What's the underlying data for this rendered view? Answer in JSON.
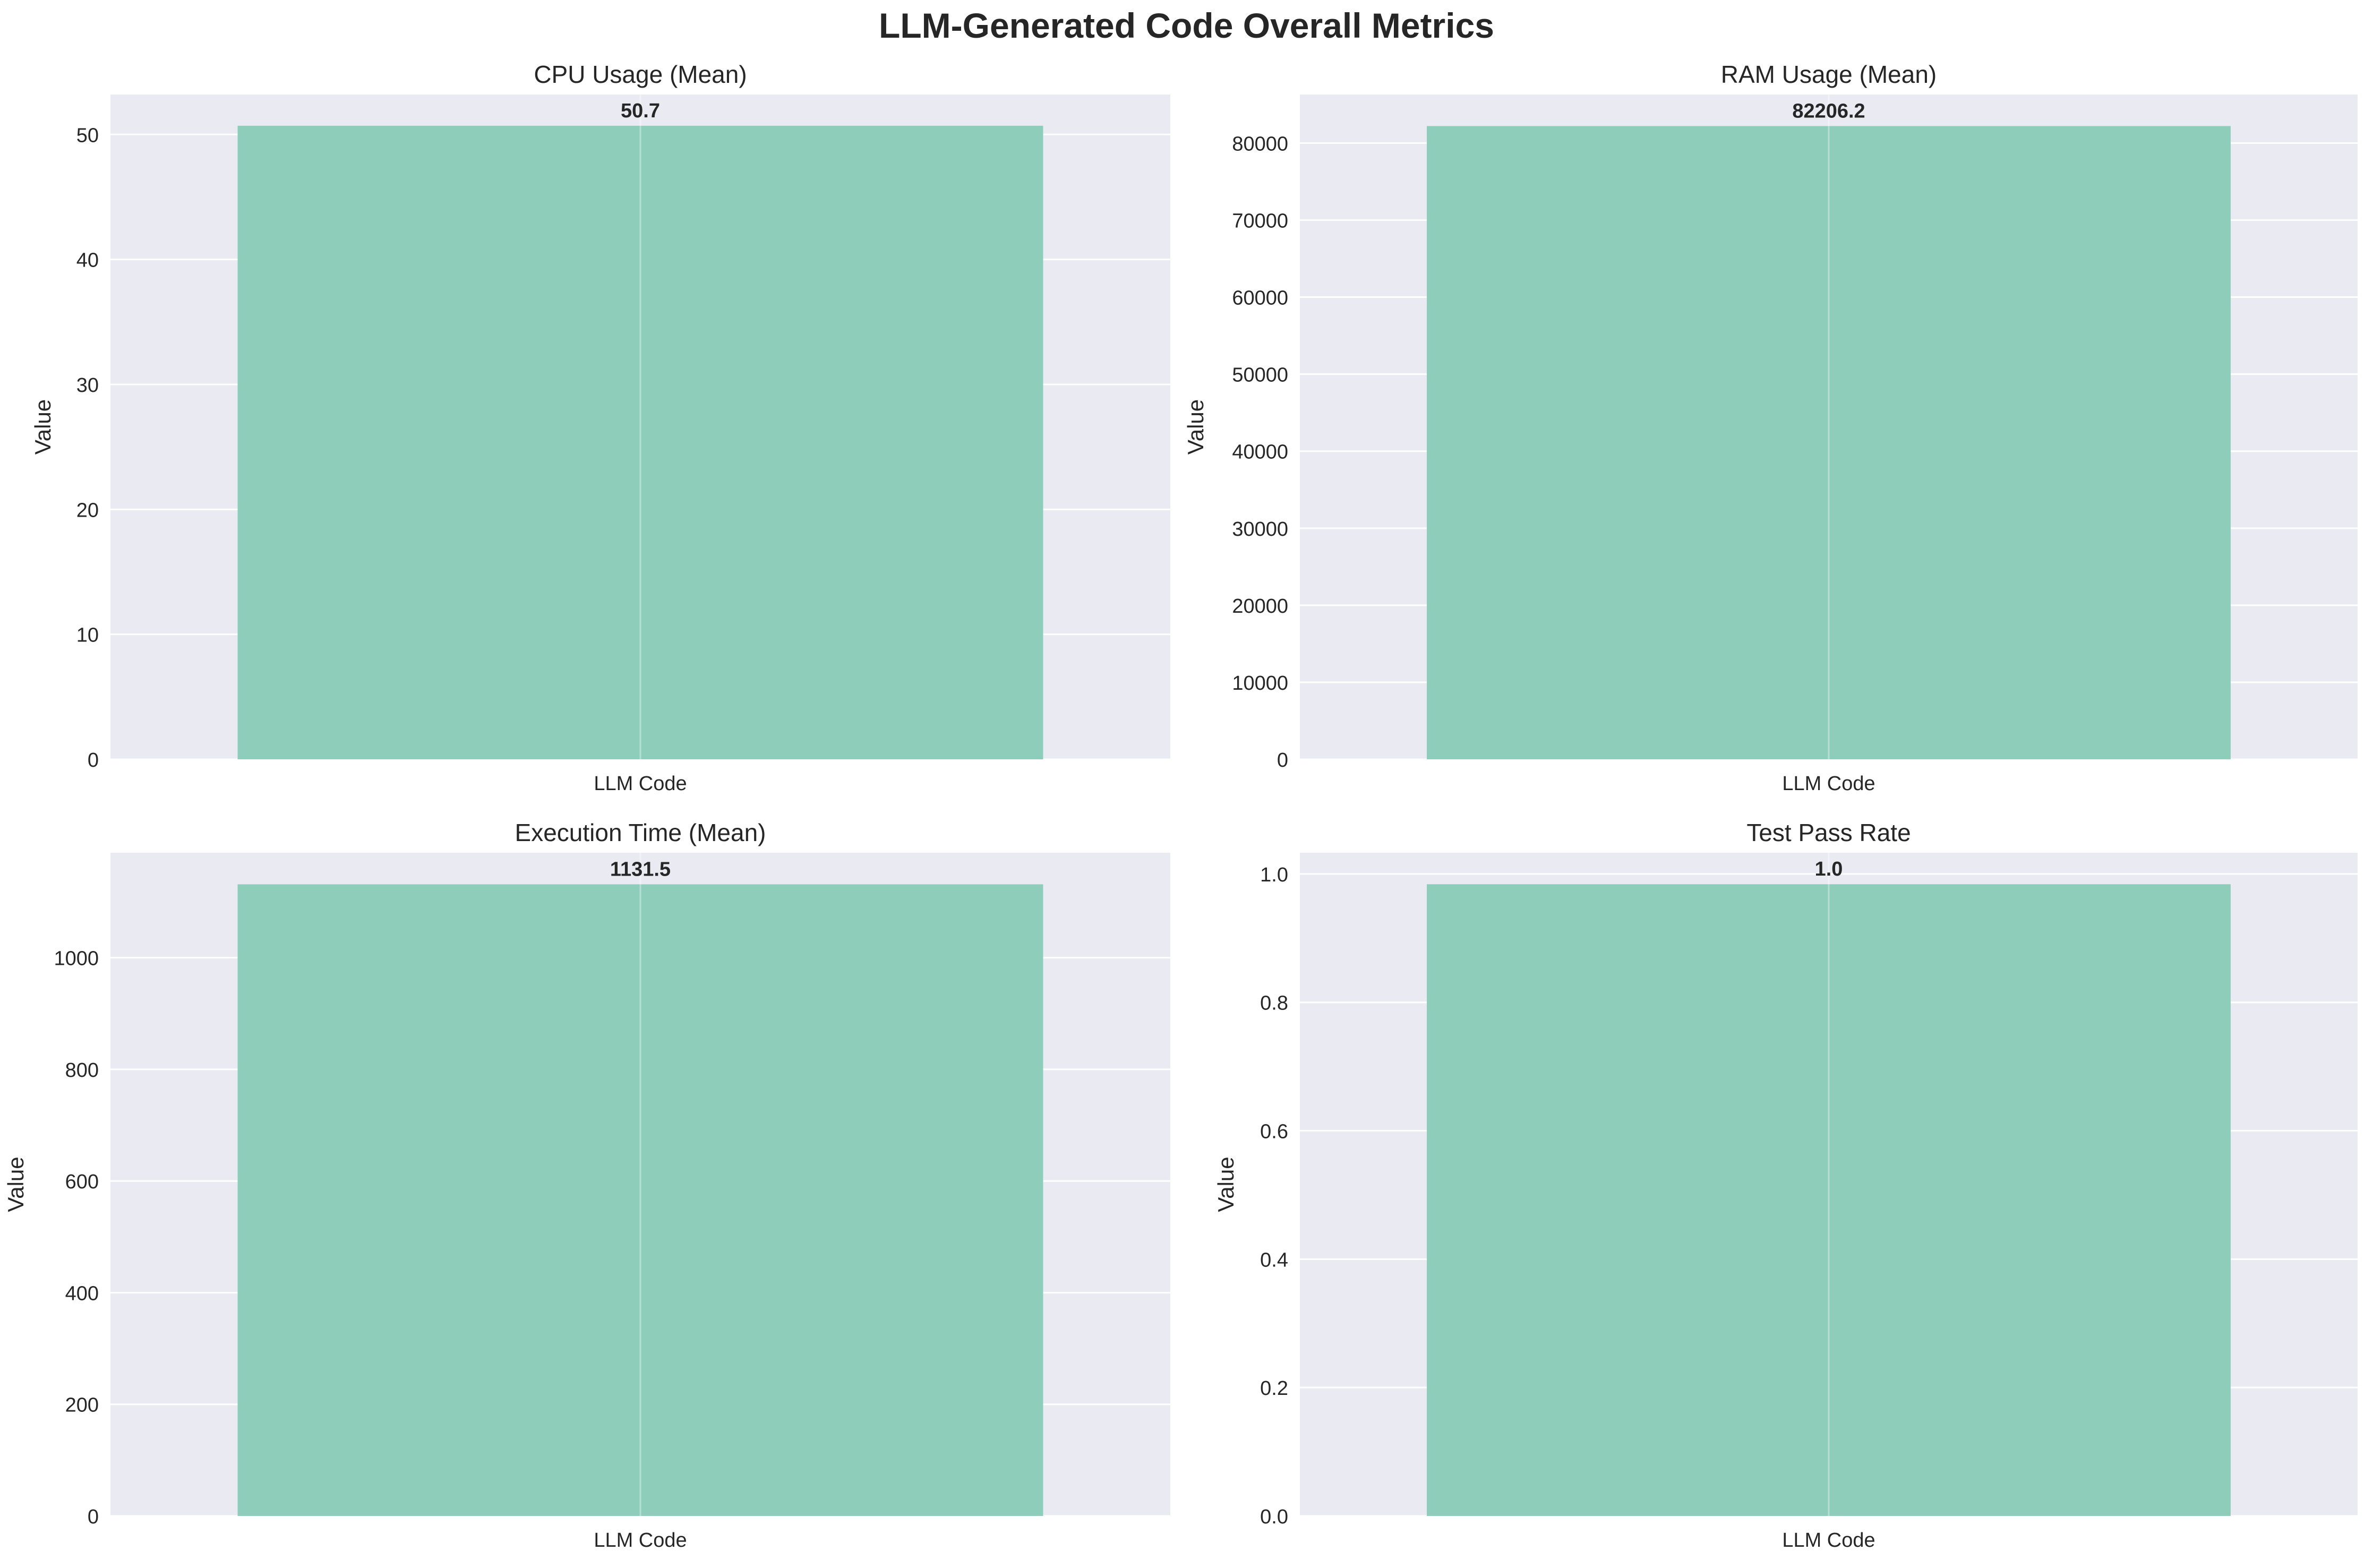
{
  "figure": {
    "title": "LLM-Generated Code Overall Metrics"
  },
  "style": {
    "plot_background": "#EAEAF2",
    "grid_color": "#FFFFFF",
    "bar_color": "#8FCDBB",
    "text_color": "#262626"
  },
  "chart_data": [
    {
      "type": "bar",
      "title": "CPU Usage (Mean)",
      "ylabel": "Value",
      "xlabel": "",
      "categories": [
        "LLM Code"
      ],
      "values": [
        50.7
      ],
      "value_labels": [
        "50.7"
      ],
      "ylim": [
        0,
        53.2
      ],
      "yticks": [
        0,
        10,
        20,
        30,
        40,
        50
      ],
      "ytick_labels": [
        "0",
        "10",
        "20",
        "30",
        "40",
        "50"
      ],
      "grid": true
    },
    {
      "type": "bar",
      "title": "RAM Usage (Mean)",
      "ylabel": "Value",
      "xlabel": "",
      "categories": [
        "LLM Code"
      ],
      "values": [
        82206.2
      ],
      "value_labels": [
        "82206.2"
      ],
      "ylim": [
        0,
        86300
      ],
      "yticks": [
        0,
        10000,
        20000,
        30000,
        40000,
        50000,
        60000,
        70000,
        80000
      ],
      "ytick_labels": [
        "0",
        "10000",
        "20000",
        "30000",
        "40000",
        "50000",
        "60000",
        "70000",
        "80000"
      ],
      "grid": true
    },
    {
      "type": "bar",
      "title": "Execution Time (Mean)",
      "ylabel": "Value",
      "xlabel": "",
      "categories": [
        "LLM Code"
      ],
      "values": [
        1131.5
      ],
      "value_labels": [
        "1131.5"
      ],
      "ylim": [
        0,
        1188
      ],
      "yticks": [
        0,
        200,
        400,
        600,
        800,
        1000
      ],
      "ytick_labels": [
        "0",
        "200",
        "400",
        "600",
        "800",
        "1000"
      ],
      "grid": true
    },
    {
      "type": "bar",
      "title": "Test Pass Rate",
      "ylabel": "Value",
      "xlabel": "",
      "categories": [
        "LLM Code"
      ],
      "values": [
        0.984
      ],
      "value_labels": [
        "1.0"
      ],
      "ylim": [
        0,
        1.033
      ],
      "yticks": [
        0.0,
        0.2,
        0.4,
        0.6,
        0.8,
        1.0
      ],
      "ytick_labels": [
        "0.0",
        "0.2",
        "0.4",
        "0.6",
        "0.8",
        "1.0"
      ],
      "grid": true
    }
  ]
}
